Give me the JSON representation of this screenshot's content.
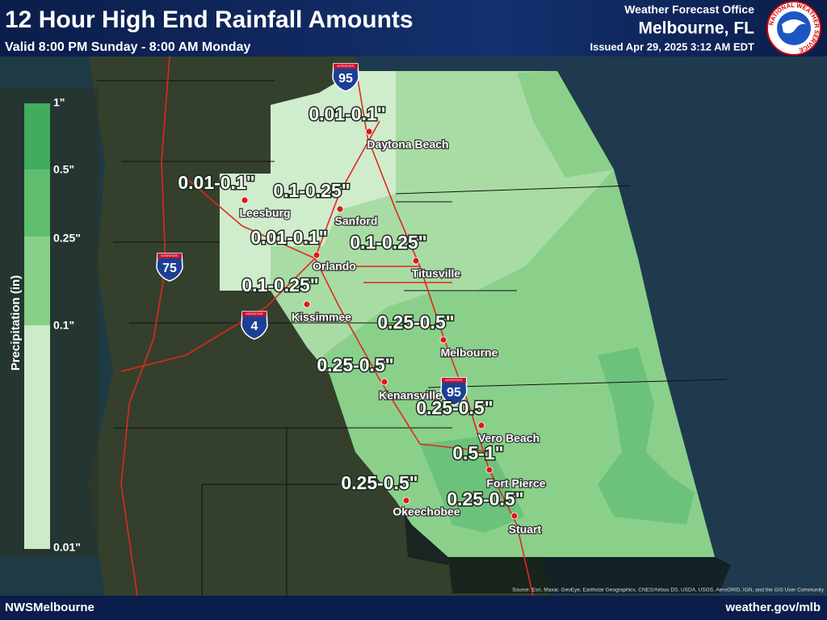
{
  "header": {
    "title": "12 Hour High End Rainfall Amounts",
    "subtitle": "Valid 8:00 PM Sunday - 8:00 AM Monday",
    "office": "Weather Forecast Office",
    "location": "Melbourne, FL",
    "issued": "Issued Apr 29, 2025 3:12 AM EDT"
  },
  "logo": {
    "text": "NATIONAL WEATHER SERVICE"
  },
  "legend": {
    "title": "Precipitation (in)",
    "labels": [
      "1\"",
      "0.5\"",
      "0.25\"",
      "0.1\"",
      "0.01\""
    ]
  },
  "amounts": [
    "0.01-0.1\"",
    "0.01-0.1\"",
    "0.1-0.25\"",
    "0.01-0.1\"",
    "0.1-0.25\"",
    "0.1-0.25\"",
    "0.25-0.5\"",
    "0.25-0.5\"",
    "0.25-0.5\"",
    "0.5-1\"",
    "0.25-0.5\"",
    "0.25-0.5\""
  ],
  "cities": [
    "Daytona Beach",
    "Leesburg",
    "Sanford",
    "Orlando",
    "Titusville",
    "Kissimmee",
    "Melbourne",
    "Kenansville",
    "Vero Beach",
    "Fort Pierce",
    "Okeechobee",
    "Stuart"
  ],
  "interstates": [
    {
      "label": "INTERSTATE",
      "number": "95"
    },
    {
      "label": "INTERSTATE",
      "number": "75"
    },
    {
      "label": "INTERSTATE",
      "number": "4"
    },
    {
      "label": "INTERSTATE",
      "number": "95"
    }
  ],
  "footer": {
    "left": "NWSMelbourne",
    "right": "weather.gov/mlb",
    "credits": "Source: Esri, Maxar, GeoEye, Earthstar Geographics, CNES/Airbus DS, USDA, USGS, AeroGRID, IGN, and the GIS User Community"
  }
}
